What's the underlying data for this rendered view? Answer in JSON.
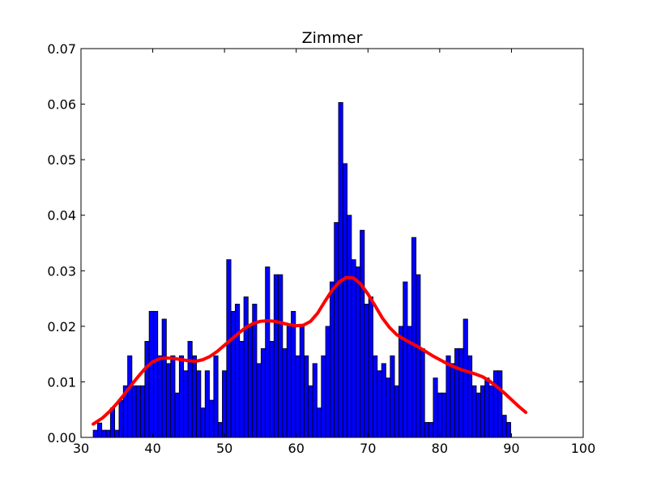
{
  "chart_data": {
    "type": "bar",
    "title": "Zimmer",
    "xlabel": "",
    "ylabel": "",
    "xlim": [
      30,
      100
    ],
    "ylim": [
      0,
      0.07
    ],
    "xticks": [
      30,
      40,
      50,
      60,
      70,
      80,
      90,
      100
    ],
    "yticks": [
      0.0,
      0.01,
      0.02,
      0.03,
      0.04,
      0.05,
      0.06,
      0.07
    ],
    "ytick_labels": [
      "0.00",
      "0.01",
      "0.02",
      "0.03",
      "0.04",
      "0.05",
      "0.06",
      "0.07"
    ],
    "grid": false,
    "bar_color": "#0000ff",
    "line_color": "#ff0000",
    "histogram": {
      "bin_start": 31.7,
      "bin_width": 0.6,
      "values": [
        0.0013,
        0.0026,
        0.0013,
        0.0013,
        0.0053,
        0.0013,
        0.0067,
        0.0093,
        0.0147,
        0.0093,
        0.0093,
        0.0093,
        0.0173,
        0.0227,
        0.0227,
        0.0147,
        0.0213,
        0.0133,
        0.0147,
        0.008,
        0.0147,
        0.012,
        0.0173,
        0.0147,
        0.012,
        0.0053,
        0.012,
        0.0067,
        0.0147,
        0.0027,
        0.012,
        0.032,
        0.0227,
        0.024,
        0.0173,
        0.0253,
        0.02,
        0.024,
        0.0133,
        0.016,
        0.0307,
        0.0173,
        0.0293,
        0.0293,
        0.016,
        0.02,
        0.0227,
        0.0147,
        0.02,
        0.0147,
        0.0093,
        0.0133,
        0.0053,
        0.0147,
        0.02,
        0.028,
        0.0387,
        0.0603,
        0.0493,
        0.04,
        0.032,
        0.0307,
        0.0373,
        0.024,
        0.0253,
        0.0147,
        0.012,
        0.0133,
        0.0107,
        0.0147,
        0.0093,
        0.02,
        0.028,
        0.02,
        0.036,
        0.0293,
        0.016,
        0.0027,
        0.0027,
        0.0107,
        0.008,
        0.008,
        0.0147,
        0.0133,
        0.016,
        0.016,
        0.0213,
        0.0147,
        0.0093,
        0.008,
        0.0093,
        0.0107,
        0.0093,
        0.012,
        0.012,
        0.004,
        0.0027
      ]
    },
    "kde_line": {
      "x": [
        31.7,
        33,
        34,
        35,
        36,
        37,
        38,
        39,
        40,
        41,
        42,
        43,
        44,
        45,
        46,
        47,
        48,
        49,
        50,
        51,
        52,
        53,
        54,
        55,
        56,
        57,
        58,
        59,
        60,
        61,
        62,
        63,
        64,
        65,
        66,
        67,
        68,
        69,
        70,
        71,
        72,
        73,
        74,
        75,
        76,
        77,
        78,
        79,
        80,
        81,
        82,
        83,
        84,
        85,
        86,
        87,
        88,
        89,
        90,
        91,
        92
      ],
      "y": [
        0.0024,
        0.0035,
        0.0047,
        0.0061,
        0.0077,
        0.0094,
        0.011,
        0.0125,
        0.0136,
        0.0142,
        0.0143,
        0.0142,
        0.014,
        0.0138,
        0.0137,
        0.014,
        0.0146,
        0.0155,
        0.0166,
        0.0177,
        0.0188,
        0.0198,
        0.0205,
        0.0209,
        0.021,
        0.0209,
        0.0206,
        0.0203,
        0.0201,
        0.0202,
        0.0209,
        0.0224,
        0.0245,
        0.0265,
        0.028,
        0.0288,
        0.0287,
        0.0276,
        0.0258,
        0.0237,
        0.0215,
        0.0198,
        0.0185,
        0.0177,
        0.017,
        0.0163,
        0.0155,
        0.0147,
        0.014,
        0.0133,
        0.0127,
        0.0122,
        0.0118,
        0.0114,
        0.0109,
        0.0101,
        0.0091,
        0.008,
        0.0068,
        0.0056,
        0.0045
      ]
    }
  }
}
